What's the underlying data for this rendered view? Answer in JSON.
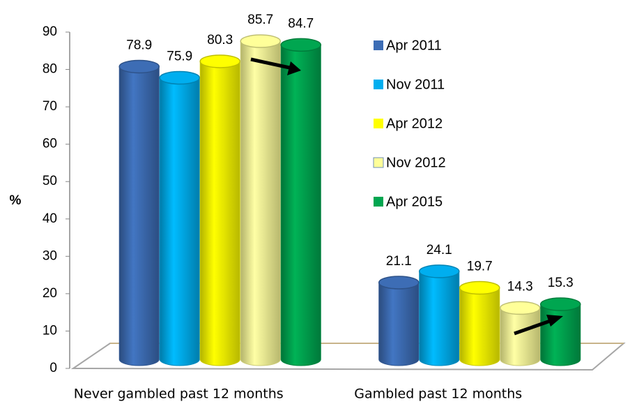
{
  "chart_data": {
    "type": "bar",
    "y_label": "%",
    "categories": [
      "Never gambled past 12 months",
      "Gambled past 12 months"
    ],
    "series": [
      {
        "name": "Apr 2011",
        "color": "#3d6db5",
        "values": [
          78.9,
          21.1
        ]
      },
      {
        "name": "Nov 2011",
        "color": "#00aeef",
        "values": [
          75.9,
          24.1
        ]
      },
      {
        "name": "Apr 2012",
        "color": "#ffff00",
        "values": [
          80.3,
          19.7
        ]
      },
      {
        "name": "Nov 2012",
        "color": "#ffff99",
        "values": [
          85.7,
          14.3
        ]
      },
      {
        "name": "Apr 2015",
        "color": "#00a650",
        "values": [
          84.7,
          15.3
        ]
      }
    ],
    "ylim": [
      0,
      90
    ],
    "yticks": [
      0,
      10,
      20,
      30,
      40,
      50,
      60,
      70,
      80,
      90
    ],
    "legend": "right"
  }
}
